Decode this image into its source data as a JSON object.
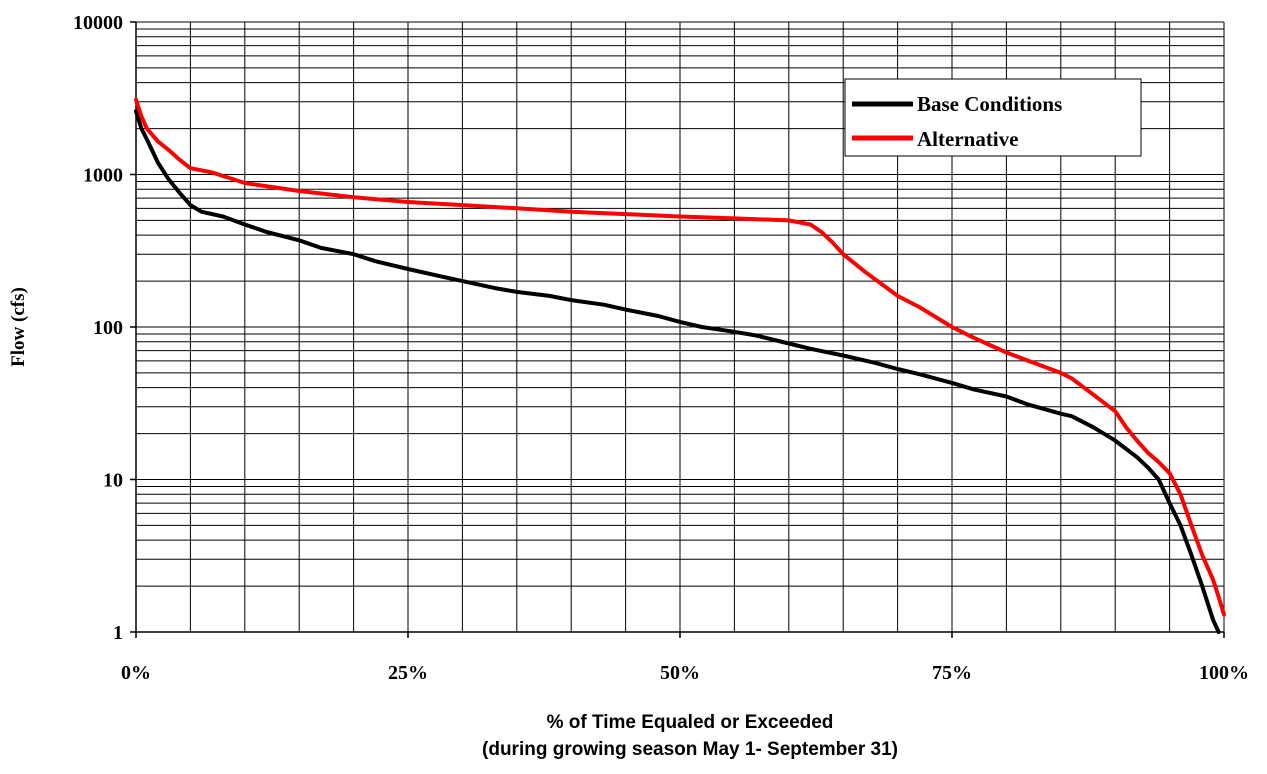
{
  "chart_data": {
    "type": "line",
    "title": "",
    "xlabel": "% of Time Equaled or Exceeded",
    "xlabel_line2": "(during growing season May 1- September 31)",
    "ylabel": "Flow (cfs)",
    "xlim": [
      0,
      100
    ],
    "ylim": [
      1,
      10000
    ],
    "y_scale": "log",
    "grid": true,
    "legend_position": "top-right",
    "x_ticks": [
      0,
      25,
      50,
      75,
      100
    ],
    "x_tick_labels": [
      "0%",
      "25%",
      "50%",
      "75%",
      "100%"
    ],
    "y_ticks": [
      1,
      10,
      100,
      1000,
      10000
    ],
    "y_tick_labels": [
      "1",
      "10",
      "100",
      "1000",
      "10000"
    ],
    "series": [
      {
        "name": "Base Conditions",
        "color": "#000000",
        "x": [
          0,
          0.5,
          1,
          2,
          3,
          4,
          5,
          6,
          8,
          10,
          12,
          15,
          17,
          20,
          22,
          25,
          28,
          30,
          33,
          35,
          38,
          40,
          43,
          45,
          48,
          50,
          52,
          55,
          57,
          60,
          62,
          65,
          68,
          70,
          72,
          75,
          77,
          80,
          82,
          85,
          86,
          88,
          90,
          92,
          93,
          94,
          95,
          96,
          97,
          98,
          99,
          99.5
        ],
        "values": [
          2600,
          2000,
          1700,
          1200,
          930,
          760,
          630,
          570,
          530,
          470,
          420,
          370,
          330,
          300,
          270,
          240,
          215,
          200,
          180,
          170,
          160,
          150,
          140,
          130,
          118,
          108,
          100,
          93,
          88,
          78,
          72,
          65,
          58,
          53,
          49,
          43,
          39,
          35,
          31,
          27,
          26,
          22,
          18,
          14,
          12,
          10,
          7,
          5,
          3.2,
          2,
          1.2,
          1
        ]
      },
      {
        "name": "Alternative",
        "color": "#ff0000",
        "x": [
          0,
          0.5,
          1,
          2,
          3,
          4,
          5,
          7,
          10,
          15,
          20,
          25,
          30,
          35,
          40,
          45,
          50,
          55,
          60,
          62,
          63,
          64,
          65,
          67,
          70,
          72,
          75,
          77,
          80,
          82,
          85,
          86,
          88,
          90,
          91,
          92,
          93,
          94,
          95,
          96,
          97,
          98,
          99,
          99.5,
          100
        ],
        "values": [
          3100,
          2400,
          2000,
          1650,
          1450,
          1250,
          1100,
          1030,
          880,
          780,
          710,
          660,
          630,
          600,
          570,
          550,
          530,
          515,
          500,
          470,
          420,
          360,
          300,
          230,
          160,
          135,
          100,
          85,
          68,
          60,
          50,
          46,
          36,
          28,
          22,
          18,
          15,
          13,
          11,
          8,
          5,
          3.2,
          2.2,
          1.7,
          1.3
        ]
      }
    ]
  }
}
